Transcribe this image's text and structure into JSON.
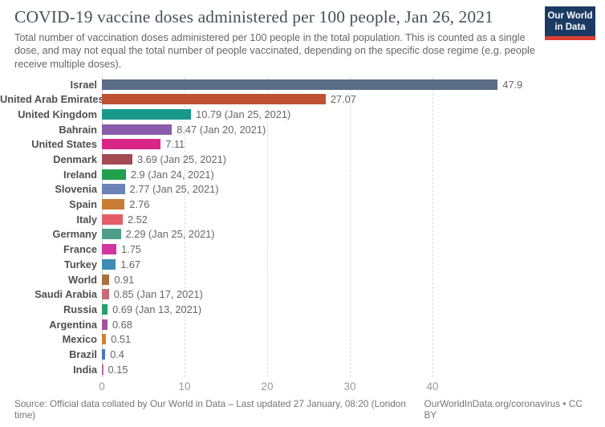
{
  "header": {
    "title": "COVID-19 vaccine doses administered per 100 people, Jan 26, 2021",
    "subtitle": "Total number of vaccination doses administered per 100 people in the total population. This is counted as a single dose, and may not equal the total number of people vaccinated, depending on the specific dose regime (e.g. people receive multiple doses).",
    "logo": {
      "line1": "Our World",
      "line2": "in Data",
      "bg_color": "#1a3a63",
      "accent_color": "#dc3e32"
    }
  },
  "chart_data": {
    "type": "bar",
    "orientation": "horizontal",
    "title": "COVID-19 vaccine doses administered per 100 people, Jan 26, 2021",
    "xlabel": "",
    "ylabel": "",
    "categories": [
      "Israel",
      "United Arab Emirates",
      "United Kingdom",
      "Bahrain",
      "United States",
      "Denmark",
      "Ireland",
      "Slovenia",
      "Spain",
      "Italy",
      "Germany",
      "France",
      "Turkey",
      "World",
      "Saudi Arabia",
      "Russia",
      "Argentina",
      "Mexico",
      "Brazil",
      "India"
    ],
    "values": [
      47.9,
      27.07,
      10.79,
      8.47,
      7.11,
      3.69,
      2.9,
      2.77,
      2.76,
      2.52,
      2.29,
      1.75,
      1.67,
      0.91,
      0.85,
      0.69,
      0.68,
      0.51,
      0.4,
      0.15
    ],
    "value_labels": [
      "47.9",
      "27.07",
      "10.79 (Jan 25, 2021)",
      "8.47 (Jan 20, 2021)",
      "7.11",
      "3.69 (Jan 25, 2021)",
      "2.9 (Jan 24, 2021)",
      "2.77 (Jan 25, 2021)",
      "2.76",
      "2.52",
      "2.29 (Jan 25, 2021)",
      "1.75",
      "1.67",
      "0.91",
      "0.85 (Jan 17, 2021)",
      "0.69 (Jan 13, 2021)",
      "0.68",
      "0.51",
      "0.4",
      "0.15"
    ],
    "colors": [
      "#5b6c87",
      "#bf5133",
      "#18998b",
      "#8a5cab",
      "#d92588",
      "#a34b53",
      "#1fa04e",
      "#6a84b6",
      "#c87c34",
      "#e35e66",
      "#4e9d8b",
      "#d433a0",
      "#3d8cb4",
      "#a9713e",
      "#ca6a79",
      "#26a06d",
      "#a4549e",
      "#d2812e",
      "#4879b5",
      "#b566b0"
    ],
    "xticks": [
      0,
      10,
      20,
      30,
      40
    ],
    "xlim": [
      0,
      48.5
    ],
    "grid": "vertical-dashed",
    "legend": "none"
  },
  "footer": {
    "source": "Source: Official data collated by Our World in Data – Last updated 27 January, 08:20 (London time)",
    "link": "OurWorldInData.org/coronavirus • CC BY"
  }
}
